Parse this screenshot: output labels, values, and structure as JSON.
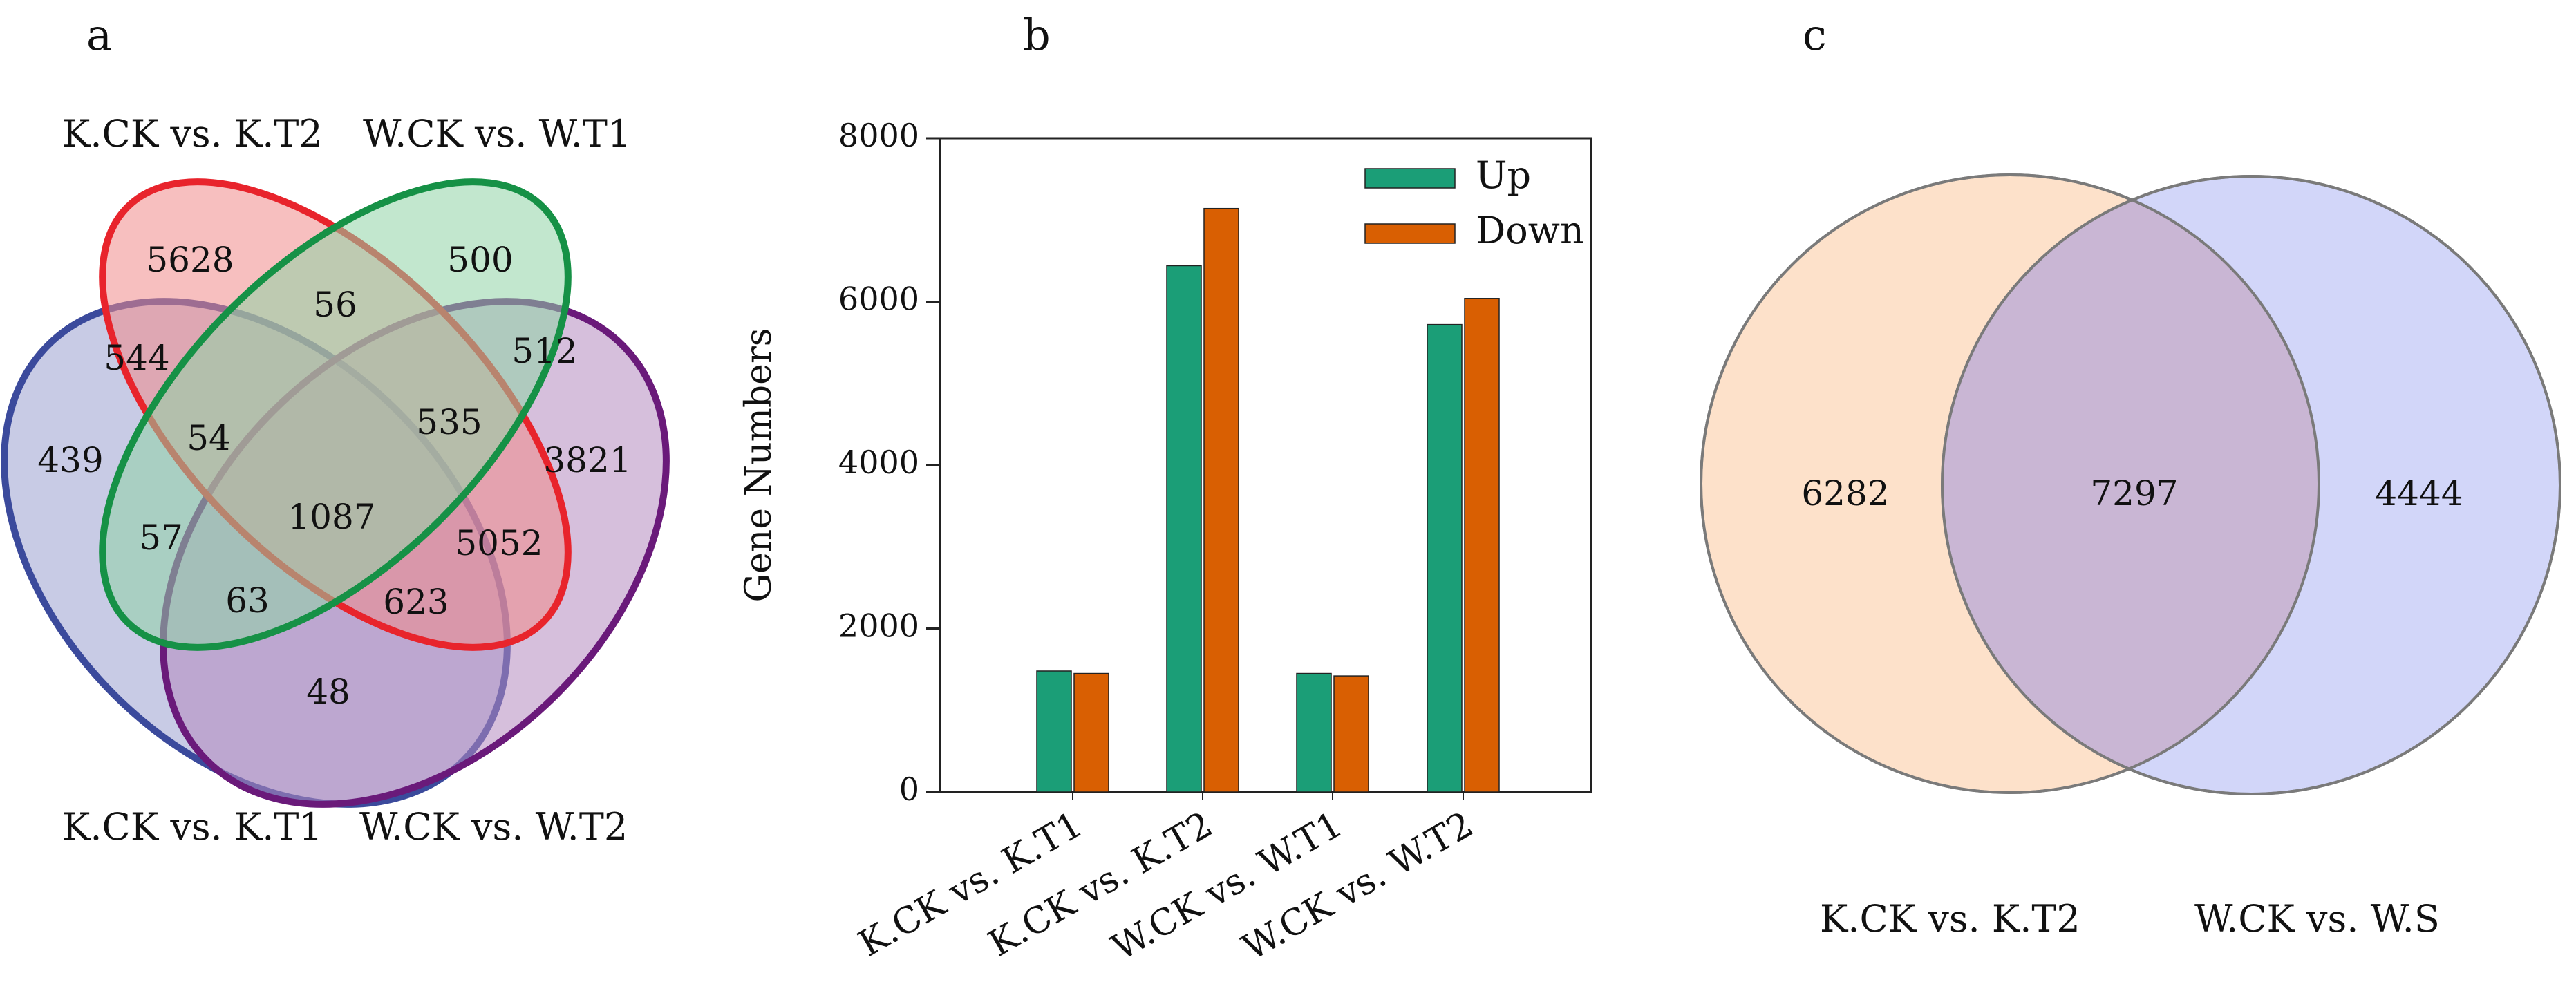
{
  "panels": {
    "a": {
      "letter": "a",
      "venn_type": "four-set",
      "sets": [
        {
          "name": "K.CK vs. K.T2",
          "color": "#e8242c",
          "fill": "#f08a8a"
        },
        {
          "name": "W.CK vs. W.T1",
          "color": "#169146",
          "fill": "#8fd3a6"
        },
        {
          "name": "K.CK vs. K.T1",
          "color": "#3b4a9c",
          "fill": "#9aa1cf"
        },
        {
          "name": "W.CK vs. W.T2",
          "color": "#6a1a7a",
          "fill": "#b58ac0"
        }
      ],
      "regions": {
        "k_t2_only": "5628",
        "w_t1_only": "500",
        "k_t1_only": "439",
        "w_t2_only": "3821",
        "k_t2_w_t1": "56",
        "k_t2_k_t1": "544",
        "w_t1_w_t2": "512",
        "k_t2_k_t1_w_t1": "54",
        "k_t2_w_t1_w_t2": "535",
        "all_four": "1087",
        "k_t1_w_t1": "57",
        "k_t2_w_t2": "5052",
        "k_t1_w_t1_w_t2": "63",
        "k_t1_k_t2_w_t2": "623",
        "k_t1_w_t2": "48"
      }
    },
    "b": {
      "letter": "b"
    },
    "c": {
      "letter": "c",
      "venn_type": "two-set",
      "sets": [
        {
          "name": "K.CK vs. K.T2",
          "fill": "#fcd9bd",
          "stroke": "#8a8a8a"
        },
        {
          "name": "W.CK vs. W.S",
          "fill": "#c7ccf7",
          "stroke": "#8a8a8a"
        }
      ],
      "regions": {
        "left_only": "6282",
        "overlap": "7297",
        "right_only": "4444"
      }
    }
  },
  "chart_data": {
    "type": "bar",
    "title": "",
    "xlabel": "",
    "ylabel": "Gene Numbers",
    "ylim": [
      0,
      8000
    ],
    "yticks": [
      "0",
      "2000",
      "4000",
      "6000",
      "8000"
    ],
    "categories": [
      "K.CK vs. K.T1",
      "K.CK vs. K.T2",
      "W.CK vs. W.T1",
      "W.CK vs. W.T2"
    ],
    "series": [
      {
        "name": "Up",
        "color": "#1b9e77",
        "values": [
          1480,
          6440,
          1450,
          5720
        ]
      },
      {
        "name": "Down",
        "color": "#d95f02",
        "values": [
          1450,
          7140,
          1420,
          6040
        ]
      }
    ],
    "legend_position": "top-right",
    "grid": false
  }
}
